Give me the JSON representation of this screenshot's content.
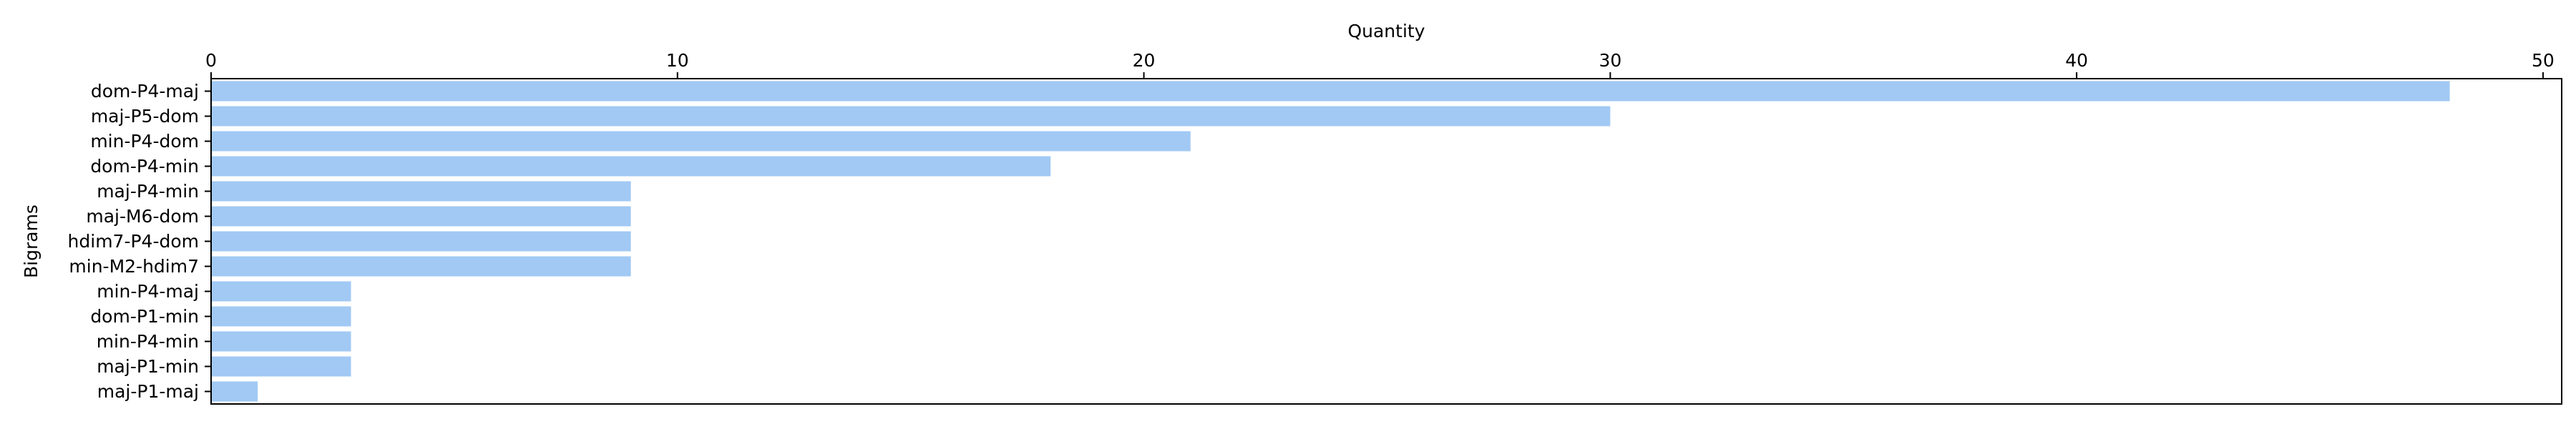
{
  "chart_data": {
    "type": "bar",
    "orientation": "horizontal",
    "title": "",
    "xlabel": "Quantity",
    "ylabel": "Bigrams",
    "x_axis_position": "top",
    "xlim": [
      0,
      50.4
    ],
    "xticks": [
      0,
      10,
      20,
      30,
      40,
      50
    ],
    "grid": false,
    "legend": "none",
    "bar_color": "#a1c9f4",
    "categories": [
      "dom-P4-maj",
      "maj-P5-dom",
      "min-P4-dom",
      "dom-P4-min",
      "maj-P4-min",
      "maj-M6-dom",
      "hdim7-P4-dom",
      "min-M2-hdim7",
      "min-P4-maj",
      "dom-P1-min",
      "min-P4-min",
      "maj-P1-min",
      "maj-P1-maj"
    ],
    "values": [
      48,
      30,
      21,
      18,
      9,
      9,
      9,
      9,
      3,
      3,
      3,
      3,
      1
    ]
  }
}
